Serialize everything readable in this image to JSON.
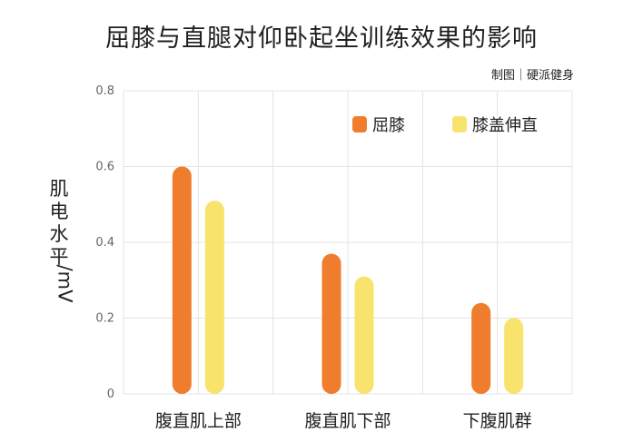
{
  "title": "屈膝与直腿对仰卧起坐训练效果的影响",
  "credit": "制图｜硬派健身",
  "colors": {
    "bent_knee": "#F07D2E",
    "straight_leg": "#F8E46C",
    "grid": "#e4e4e4"
  },
  "chart_data": {
    "type": "bar",
    "title": "屈膝与直腿对仰卧起坐训练效果的影响",
    "ylabel": "肌电水平/mV",
    "ylim": [
      0,
      0.8
    ],
    "yticks": [
      "0",
      "0.2",
      "0.4",
      "0.6",
      "0.8"
    ],
    "ytick_values": [
      0,
      0.2,
      0.4,
      0.6,
      0.8
    ],
    "categories": [
      "腹直肌上部",
      "腹直肌下部",
      "下腹肌群"
    ],
    "series": [
      {
        "name": "屈膝",
        "values": [
          0.6,
          0.37,
          0.24
        ]
      },
      {
        "name": "膝盖伸直",
        "values": [
          0.51,
          0.31,
          0.2
        ]
      }
    ],
    "grid": true,
    "legend": "top-right"
  }
}
